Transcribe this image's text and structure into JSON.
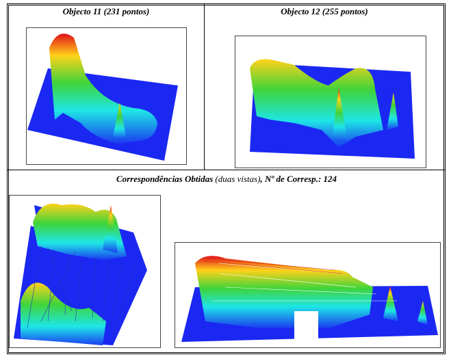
{
  "panels": [
    {
      "caption": "Objecto 11 (231 pontos)"
    },
    {
      "caption": "Objecto 12 (255 pontos)"
    }
  ],
  "matches": {
    "caption_parts": [
      "Correspondências Obtidas",
      "(duas vistas)",
      ", Nº de Corresp.: 124"
    ]
  }
}
